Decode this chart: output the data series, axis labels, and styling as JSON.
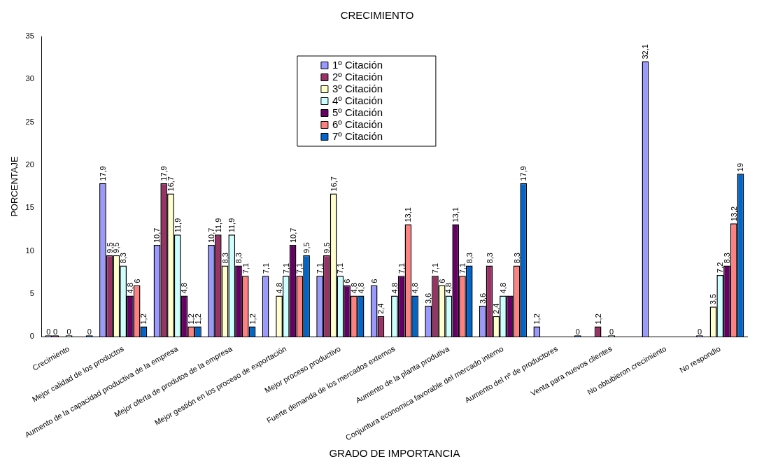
{
  "chart_data": {
    "type": "bar",
    "title": "CRECIMIENTO",
    "xlabel": "GRADO DE IMPORTANCIA",
    "ylabel": "PORCENTAJE",
    "categories": [
      "Crecimiento",
      "Mejor calidad de los productos",
      "Aumento de la capacidad productiva de la empresa",
      "Mejor oferta de produtos de la empresa",
      "Mejor gestión en los proceso de exportación",
      "Mejor proceso productivo",
      "Fuerte demanda de los mercados externos",
      "Aumento de la planta produtiva",
      "Conjuntura economica favorable del mercado interno",
      "Aumento del nº de productores",
      "Venta para nuevos clientes",
      "No obtubieron crecimiento",
      "No respondio"
    ],
    "series": [
      {
        "name": "1º Citación",
        "color": "#9999ff",
        "values": [
          0,
          17.9,
          10.7,
          10.7,
          7.1,
          7.1,
          6,
          3.6,
          3.6,
          1.2,
          null,
          32.1,
          0
        ],
        "value_labels": [
          "0",
          "17,9",
          "10,7",
          "10,7",
          "7,1",
          "7,1",
          "6",
          "3,6",
          "3,6",
          "1,2",
          null,
          "32,1",
          "0"
        ]
      },
      {
        "name": "2º Citación",
        "color": "#993366",
        "values": [
          0,
          9.5,
          17.9,
          11.9,
          null,
          9.5,
          2.4,
          7.1,
          8.3,
          null,
          1.2,
          null,
          null
        ],
        "value_labels": [
          "0",
          "9,5",
          "17,9",
          "11,9",
          null,
          "9,5",
          "2,4",
          "7,1",
          "8,3",
          null,
          "1,2",
          null,
          null
        ]
      },
      {
        "name": "3º Citación",
        "color": "#ffffcc",
        "values": [
          null,
          9.5,
          16.7,
          8.3,
          4.8,
          16.7,
          null,
          6,
          2.4,
          null,
          null,
          null,
          3.5
        ],
        "value_labels": [
          null,
          "9,5",
          "16,7",
          "8,3",
          "4,8",
          "16,7",
          null,
          "6",
          "2,4",
          null,
          null,
          null,
          "3,5"
        ]
      },
      {
        "name": "4º Citación",
        "color": "#ccffff",
        "values": [
          0,
          8.3,
          11.9,
          11.9,
          7.1,
          7.1,
          4.8,
          4.8,
          4.8,
          null,
          0,
          null,
          7.2
        ],
        "value_labels": [
          "0",
          "8,3",
          "11,9",
          "11,9",
          "7,1",
          "7,1",
          "4,8",
          "4,8",
          "4,8",
          null,
          "0",
          null,
          "7,2"
        ]
      },
      {
        "name": "5º Citación",
        "color": "#660066",
        "values": [
          null,
          4.8,
          4.8,
          8.3,
          10.7,
          6,
          7.1,
          13.1,
          4.8,
          null,
          null,
          null,
          8.3
        ],
        "value_labels": [
          null,
          "4,8",
          "4,8",
          "8,3",
          "10,7",
          "6",
          "7,1",
          "13,1",
          null,
          null,
          null,
          null,
          "8,3"
        ]
      },
      {
        "name": "6º Citación",
        "color": "#ff8080",
        "values": [
          null,
          6,
          1.2,
          7.1,
          7.1,
          4.8,
          13.1,
          7.1,
          8.3,
          null,
          null,
          null,
          13.2
        ],
        "value_labels": [
          null,
          "6",
          "1,2",
          "7,1",
          "7,1",
          "4,8",
          "13,1",
          "7,1",
          "8,3",
          null,
          null,
          null,
          "13,2"
        ]
      },
      {
        "name": "7º Citación",
        "color": "#0066cc",
        "values": [
          0,
          1.2,
          1.2,
          1.2,
          9.5,
          4.8,
          4.8,
          8.3,
          17.9,
          0,
          null,
          null,
          19
        ],
        "value_labels": [
          "0",
          "1,2",
          "1,2",
          "1,2",
          "9,5",
          "4,8",
          "4,8",
          "8,3",
          "17,9",
          "0",
          null,
          null,
          "19"
        ]
      }
    ],
    "ylim": [
      0,
      35
    ],
    "yticks": [
      0,
      5,
      10,
      15,
      20,
      25,
      30,
      35
    ],
    "grid": false,
    "legend": "top"
  }
}
